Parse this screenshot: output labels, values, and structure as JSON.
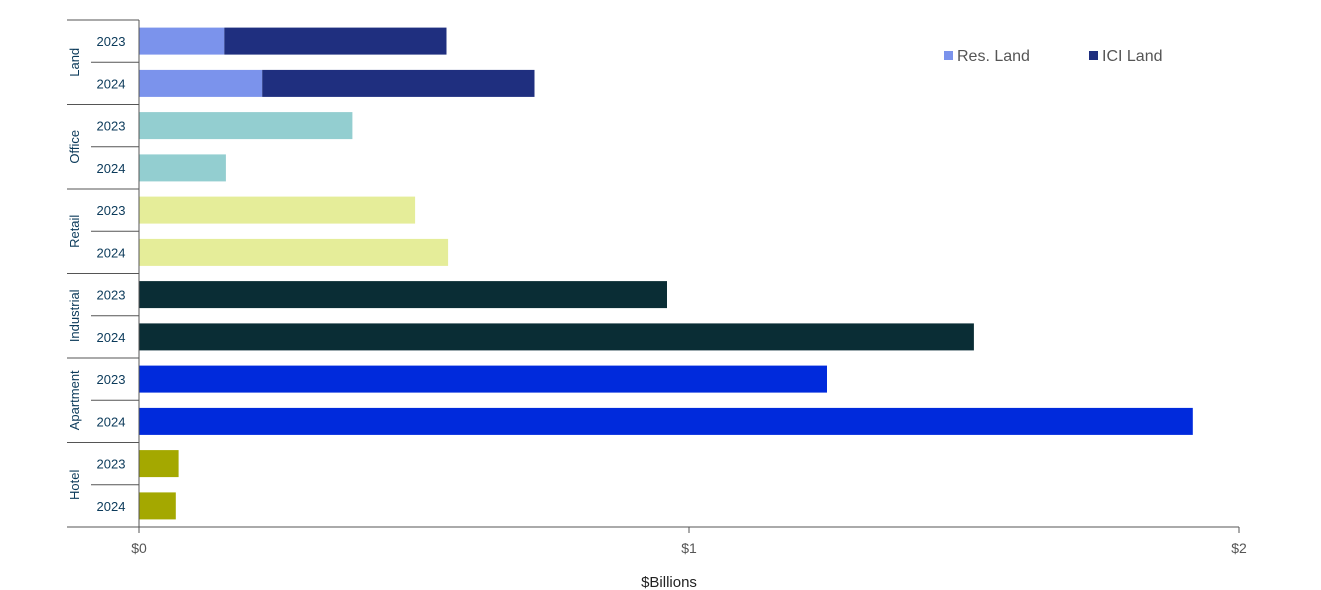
{
  "chart_data": {
    "type": "bar",
    "orientation": "horizontal",
    "stacked": true,
    "xlabel": "$Billions",
    "ylabel": "",
    "xlim": [
      0,
      2
    ],
    "x_ticks": [
      {
        "value": 0,
        "label": "$0"
      },
      {
        "value": 1,
        "label": "$1"
      },
      {
        "value": 2,
        "label": "$2"
      }
    ],
    "grid": false,
    "legend": {
      "position": "top-right",
      "entries": [
        {
          "label": "Res. Land",
          "color": "#7b93ec"
        },
        {
          "label": "ICI Land",
          "color": "#1f2f7f"
        }
      ]
    },
    "groups": [
      {
        "name": "Land",
        "bars": [
          {
            "year": "2023",
            "segments": [
              {
                "series": "Res. Land",
                "value": 0.155,
                "color": "#7b93ec"
              },
              {
                "series": "ICI Land",
                "value": 0.404,
                "color": "#1f2f7f"
              }
            ]
          },
          {
            "year": "2024",
            "segments": [
              {
                "series": "Res. Land",
                "value": 0.224,
                "color": "#7b93ec"
              },
              {
                "series": "ICI Land",
                "value": 0.495,
                "color": "#1f2f7f"
              }
            ]
          }
        ]
      },
      {
        "name": "Office",
        "bars": [
          {
            "year": "2023",
            "segments": [
              {
                "value": 0.388,
                "color": "#93ced0"
              }
            ]
          },
          {
            "year": "2024",
            "segments": [
              {
                "value": 0.158,
                "color": "#93ced0"
              }
            ]
          }
        ]
      },
      {
        "name": "Retail",
        "bars": [
          {
            "year": "2023",
            "segments": [
              {
                "value": 0.502,
                "color": "#e5ed99"
              }
            ]
          },
          {
            "year": "2024",
            "segments": [
              {
                "value": 0.562,
                "color": "#e5ed99"
              }
            ]
          }
        ]
      },
      {
        "name": "Industrial",
        "bars": [
          {
            "year": "2023",
            "segments": [
              {
                "value": 0.96,
                "color": "#0a2d35"
              }
            ]
          },
          {
            "year": "2024",
            "segments": [
              {
                "value": 1.518,
                "color": "#0a2d35"
              }
            ]
          }
        ]
      },
      {
        "name": "Apartment",
        "bars": [
          {
            "year": "2023",
            "segments": [
              {
                "value": 1.251,
                "color": "#002adc"
              }
            ]
          },
          {
            "year": "2024",
            "segments": [
              {
                "value": 1.916,
                "color": "#002adc"
              }
            ]
          }
        ]
      },
      {
        "name": "Hotel",
        "bars": [
          {
            "year": "2023",
            "segments": [
              {
                "value": 0.072,
                "color": "#a4a800"
              }
            ]
          },
          {
            "year": "2024",
            "segments": [
              {
                "value": 0.067,
                "color": "#a4a800"
              }
            ]
          }
        ]
      }
    ]
  }
}
